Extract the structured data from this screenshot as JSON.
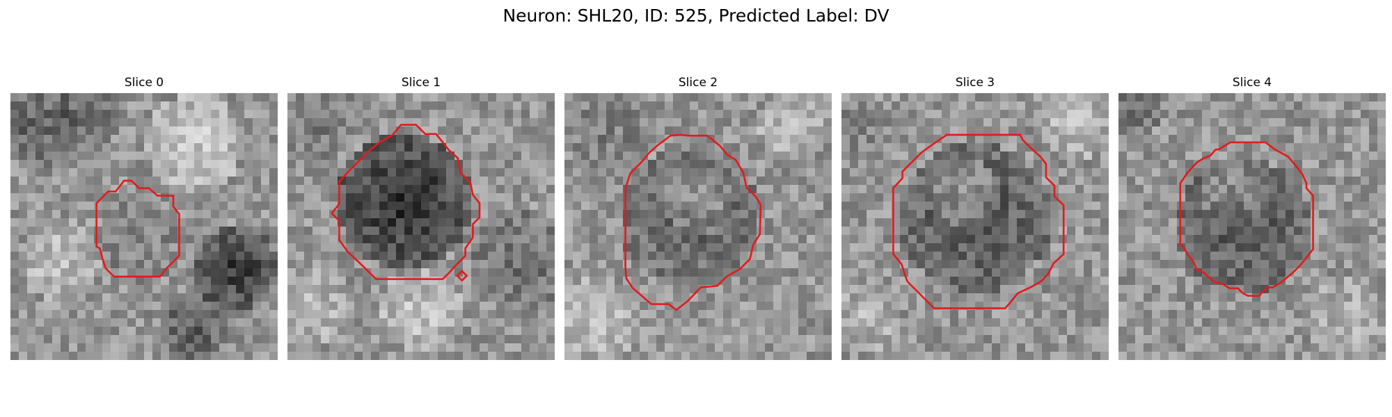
{
  "figure": {
    "title": "Neuron: SHL20, ID: 525, Predicted Label: DV"
  },
  "panels": [
    {
      "title": "Slice 0"
    },
    {
      "title": "Slice 1"
    },
    {
      "title": "Slice 2"
    },
    {
      "title": "Slice 3"
    },
    {
      "title": "Slice 4"
    }
  ],
  "colors": {
    "contour": "#e41a1c",
    "background": "#ffffff",
    "colormap": "grayscale"
  }
}
